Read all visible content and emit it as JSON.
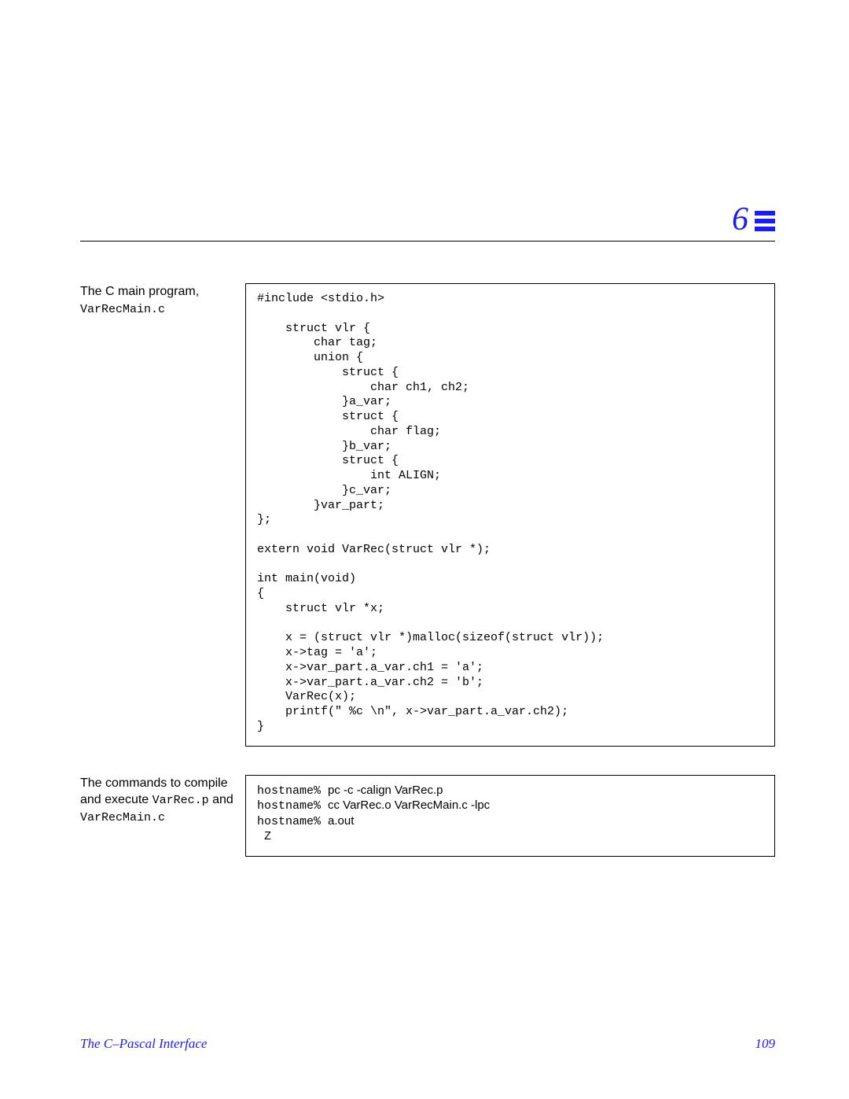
{
  "chapter": {
    "number": "6",
    "icon_color": "#1a1aff",
    "rule_color": "#000000"
  },
  "block1": {
    "caption_line1": "The C main program,",
    "caption_file": "VarRecMain.c",
    "code": "#include <stdio.h>\n\n    struct vlr {\n        char tag;\n        union {\n            struct {\n                char ch1, ch2;\n            }a_var;\n            struct {\n                char flag;\n            }b_var;\n            struct {\n                int ALIGN;\n            }c_var;\n        }var_part;\n};\n\nextern void VarRec(struct vlr *);\n\nint main(void)\n{\n    struct vlr *x;\n\n    x = (struct vlr *)malloc(sizeof(struct vlr));\n    x->tag = 'a';\n    x->var_part.a_var.ch1 = 'a';\n    x->var_part.a_var.ch2 = 'b';\n    VarRec(x);\n    printf(\" %c \\n\", x->var_part.a_var.ch2);\n}"
  },
  "block2": {
    "caption_text1": "The commands to compile and execute ",
    "caption_file1": "VarRec.p",
    "caption_text2": " and",
    "caption_file2": "VarRecMain.c",
    "host_prompt": "hostname% ",
    "cmd1": "pc -c -calign VarRec.p",
    "cmd2": "cc VarRec.o VarRecMain.c -lpc",
    "cmd3": "a.out",
    "output_line": " Z"
  },
  "footer": {
    "title": "The C–Pascal Interface",
    "page": "109",
    "color": "#1a1aff"
  },
  "style": {
    "page_bg": "#ffffff",
    "text_color": "#000000",
    "mono_font": "Courier New",
    "body_font": "Helvetica",
    "serif_font": "Times New Roman",
    "code_border": "#000000",
    "code_fontsize": 15,
    "caption_fontsize": 16,
    "footer_fontsize": 17,
    "chapter_fontsize": 42
  }
}
